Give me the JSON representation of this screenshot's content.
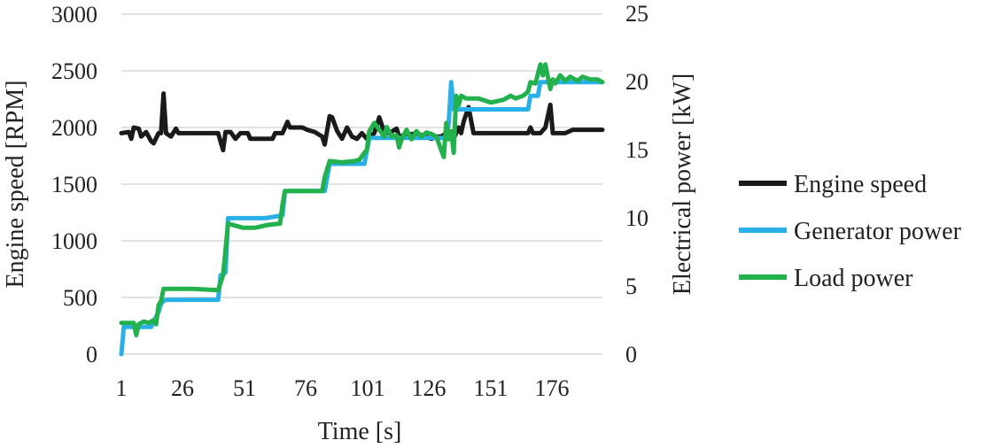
{
  "chart_data": {
    "type": "line",
    "title": "",
    "xlabel": "Time [s]",
    "ylabel_left": "Engine speed [RPM]",
    "ylabel_right": "Electrical power [kW]",
    "x_ticks": [
      "1",
      "26",
      "51",
      "76",
      "101",
      "126",
      "151",
      "176"
    ],
    "xlim": [
      1,
      195
    ],
    "ylim_left": [
      0,
      3000
    ],
    "ylim_right": [
      0,
      25
    ],
    "y_ticks_left": [
      "0",
      "500",
      "1000",
      "1500",
      "2000",
      "2500",
      "3000"
    ],
    "y_ticks_right": [
      "0",
      "5",
      "10",
      "15",
      "20",
      "25"
    ],
    "grid": true,
    "legend_position": "right",
    "series": [
      {
        "name": "Engine speed",
        "axis": "left",
        "color": "#1a1a1a",
        "points": [
          [
            1,
            1950
          ],
          [
            4,
            1960
          ],
          [
            5,
            1900
          ],
          [
            6,
            2000
          ],
          [
            8,
            1990
          ],
          [
            9,
            1920
          ],
          [
            11,
            1960
          ],
          [
            13,
            1880
          ],
          [
            14,
            1860
          ],
          [
            16,
            1950
          ],
          [
            17,
            1950
          ],
          [
            18,
            2300
          ],
          [
            19,
            1950
          ],
          [
            21,
            1920
          ],
          [
            23,
            1990
          ],
          [
            24,
            1950
          ],
          [
            30,
            1950
          ],
          [
            40,
            1950
          ],
          [
            42,
            1800
          ],
          [
            43,
            1960
          ],
          [
            45,
            1960
          ],
          [
            47,
            1900
          ],
          [
            49,
            1950
          ],
          [
            52,
            1950
          ],
          [
            53,
            1900
          ],
          [
            62,
            1900
          ],
          [
            63,
            1950
          ],
          [
            66,
            1950
          ],
          [
            68,
            2050
          ],
          [
            69,
            2000
          ],
          [
            74,
            2000
          ],
          [
            76,
            1980
          ],
          [
            79,
            1960
          ],
          [
            82,
            1920
          ],
          [
            83,
            1850
          ],
          [
            85,
            2100
          ],
          [
            86,
            2090
          ],
          [
            88,
            1970
          ],
          [
            90,
            1900
          ],
          [
            92,
            2000
          ],
          [
            94,
            1920
          ],
          [
            96,
            1900
          ],
          [
            98,
            1950
          ],
          [
            100,
            1900
          ],
          [
            103,
            1950
          ],
          [
            105,
            2090
          ],
          [
            107,
            1960
          ],
          [
            109,
            1950
          ],
          [
            112,
            1990
          ],
          [
            113,
            1920
          ],
          [
            120,
            1950
          ],
          [
            126,
            1900
          ],
          [
            128,
            1920
          ],
          [
            130,
            1920
          ],
          [
            132,
            1950
          ],
          [
            134,
            1950
          ],
          [
            135,
            1900
          ],
          [
            137,
            2000
          ],
          [
            138,
            1950
          ],
          [
            139,
            2050
          ],
          [
            141,
            2180
          ],
          [
            143,
            1950
          ],
          [
            150,
            1950
          ],
          [
            160,
            1950
          ],
          [
            165,
            1950
          ],
          [
            166,
            2000
          ],
          [
            167,
            1950
          ],
          [
            170,
            1950
          ],
          [
            172,
            2000
          ],
          [
            174,
            2200
          ],
          [
            175,
            1950
          ],
          [
            180,
            1950
          ],
          [
            183,
            1980
          ],
          [
            195,
            1980
          ]
        ]
      },
      {
        "name": "Generator power",
        "axis": "right",
        "color": "#2ab0e8",
        "points": [
          [
            1,
            0
          ],
          [
            2,
            2
          ],
          [
            13,
            2
          ],
          [
            14,
            2.4
          ],
          [
            16,
            3.1
          ],
          [
            17,
            3.7
          ],
          [
            18,
            3.9
          ],
          [
            19,
            4.0
          ],
          [
            40,
            4.0
          ],
          [
            41,
            5.8
          ],
          [
            43,
            6.0
          ],
          [
            44,
            10.0
          ],
          [
            57,
            10.0
          ],
          [
            59,
            10.0
          ],
          [
            66,
            10.2
          ],
          [
            67,
            12.0
          ],
          [
            83,
            12.0
          ],
          [
            85,
            14.0
          ],
          [
            99,
            14.0
          ],
          [
            101,
            15.9
          ],
          [
            132,
            15.9
          ],
          [
            133,
            17.0
          ],
          [
            134,
            20.0
          ],
          [
            135,
            18.0
          ],
          [
            165,
            18.0
          ],
          [
            166,
            19.0
          ],
          [
            169,
            19.0
          ],
          [
            170,
            20.0
          ],
          [
            195,
            20.0
          ]
        ]
      },
      {
        "name": "Load power",
        "axis": "right",
        "color": "#22b14c",
        "points": [
          [
            1,
            2.3
          ],
          [
            6,
            2.3
          ],
          [
            7,
            1.4
          ],
          [
            8,
            2.2
          ],
          [
            10,
            2.4
          ],
          [
            12,
            2.3
          ],
          [
            14,
            2.5
          ],
          [
            15,
            2.2
          ],
          [
            16,
            3.6
          ],
          [
            17,
            3.9
          ],
          [
            18,
            4.8
          ],
          [
            25,
            4.8
          ],
          [
            30,
            4.8
          ],
          [
            40,
            4.7
          ],
          [
            42,
            5.8
          ],
          [
            44,
            9.6
          ],
          [
            46,
            9.5
          ],
          [
            50,
            9.3
          ],
          [
            55,
            9.3
          ],
          [
            60,
            9.5
          ],
          [
            65,
            9.6
          ],
          [
            66,
            11.0
          ],
          [
            67,
            12.0
          ],
          [
            76,
            12.0
          ],
          [
            82,
            12.0
          ],
          [
            83,
            13.0
          ],
          [
            85,
            14.2
          ],
          [
            90,
            14.1
          ],
          [
            95,
            14.2
          ],
          [
            97,
            14.3
          ],
          [
            99,
            14.8
          ],
          [
            100,
            15.0
          ],
          [
            101,
            16.4
          ],
          [
            103,
            17.0
          ],
          [
            105,
            16.5
          ],
          [
            107,
            16.0
          ],
          [
            108,
            16.7
          ],
          [
            110,
            16.0
          ],
          [
            112,
            16.1
          ],
          [
            113,
            15.2
          ],
          [
            114,
            15.8
          ],
          [
            116,
            16.5
          ],
          [
            118,
            15.8
          ],
          [
            120,
            16.4
          ],
          [
            122,
            16.0
          ],
          [
            124,
            16.3
          ],
          [
            126,
            16.2
          ],
          [
            128,
            16.0
          ],
          [
            130,
            15.0
          ],
          [
            131,
            14.5
          ],
          [
            132,
            17.0
          ],
          [
            133,
            15.8
          ],
          [
            134,
            16.4
          ],
          [
            135,
            14.8
          ],
          [
            136,
            19.0
          ],
          [
            137,
            18.3
          ],
          [
            138,
            19.0
          ],
          [
            140,
            18.8
          ],
          [
            145,
            18.8
          ],
          [
            150,
            18.5
          ],
          [
            155,
            18.7
          ],
          [
            158,
            19.0
          ],
          [
            160,
            18.8
          ],
          [
            163,
            19.0
          ],
          [
            165,
            19.3
          ],
          [
            166,
            20.0
          ],
          [
            168,
            19.9
          ],
          [
            170,
            21.3
          ],
          [
            171,
            20.5
          ],
          [
            172,
            21.3
          ],
          [
            174,
            19.5
          ],
          [
            175,
            20.2
          ],
          [
            176,
            19.9
          ],
          [
            178,
            20.5
          ],
          [
            180,
            20.1
          ],
          [
            182,
            20.4
          ],
          [
            185,
            20.1
          ],
          [
            187,
            20.4
          ],
          [
            190,
            20.2
          ],
          [
            193,
            20.2
          ],
          [
            195,
            20.0
          ]
        ]
      }
    ]
  }
}
